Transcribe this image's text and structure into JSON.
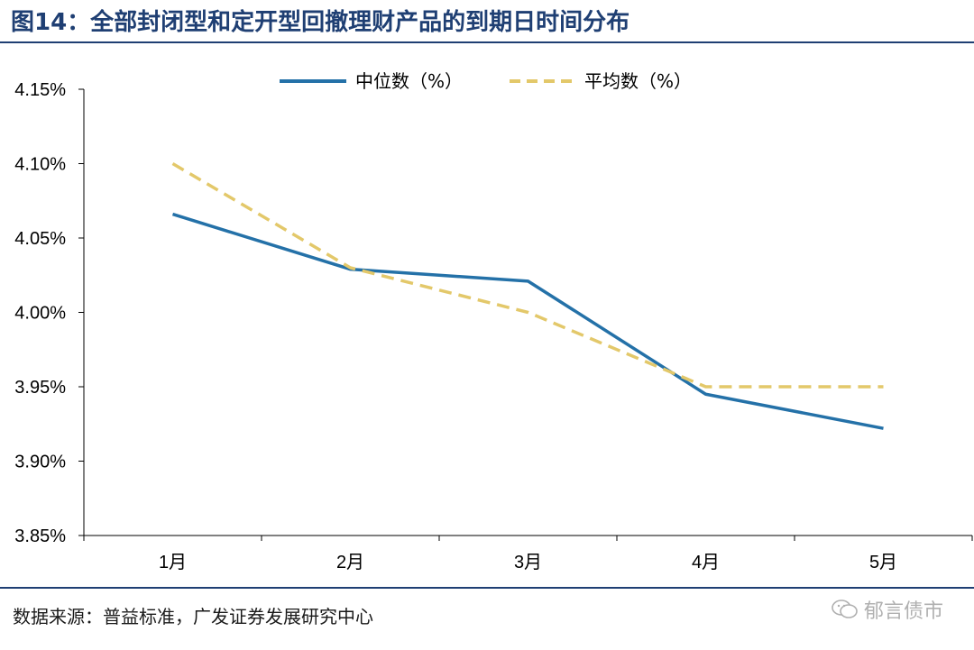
{
  "title": "图14：全部封闭型和定开型回撤理财产品的到期日时间分布",
  "source": "数据来源：普益标准，广发证券发展研究中心",
  "watermark": "郁言债市",
  "colors": {
    "median": "#2471a8",
    "mean": "#e3c86a",
    "title": "#1f3f73"
  },
  "chart_data": {
    "type": "line",
    "title": "",
    "xlabel": "",
    "ylabel": "",
    "categories": [
      "1月",
      "2月",
      "3月",
      "4月",
      "5月"
    ],
    "ylim": [
      3.85,
      4.15
    ],
    "yticks": [
      "3.85%",
      "3.90%",
      "3.95%",
      "4.00%",
      "4.05%",
      "4.10%",
      "4.15%"
    ],
    "ytick_values": [
      3.85,
      3.9,
      3.95,
      4.0,
      4.05,
      4.1,
      4.15
    ],
    "legend_position": "top-center",
    "series": [
      {
        "name": "中位数（%）",
        "style": "solid",
        "values": [
          4.066,
          4.029,
          4.021,
          3.945,
          3.922
        ]
      },
      {
        "name": "平均数（%）",
        "style": "dashed",
        "values": [
          4.1,
          4.03,
          4.0,
          3.95,
          3.95
        ]
      }
    ]
  }
}
